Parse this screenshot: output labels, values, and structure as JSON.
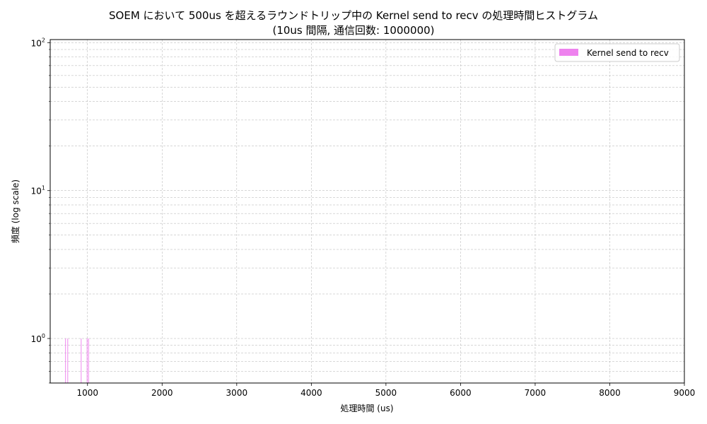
{
  "chart_data": {
    "type": "bar",
    "title": "SOEM において 500us を超えるラウンドトリップ中の Kernel send to recv の処理時間ヒストグラム",
    "subtitle": "(10us 間隔, 通信回数: 1000000)",
    "xlabel": "処理時間 (us)",
    "ylabel": "頻度 (log scale)",
    "xlim": [
      500,
      9000
    ],
    "ylim": [
      0.5,
      105
    ],
    "y_scale": "log",
    "grid": true,
    "legend_position": "top-right",
    "x_ticks": [
      "1000",
      "2000",
      "3000",
      "4000",
      "5000",
      "6000",
      "7000",
      "8000",
      "9000"
    ],
    "y_ticks": [
      {
        "value": 1,
        "label": "10",
        "exp": "0"
      },
      {
        "value": 10,
        "label": "10",
        "exp": "1"
      },
      {
        "value": 100,
        "label": "10",
        "exp": "2"
      }
    ],
    "series": [
      {
        "name": "Kernel send to recv",
        "color": "#ee82ee",
        "bin_width": 10,
        "bins": [
          {
            "x": 700,
            "value": 1
          },
          {
            "x": 730,
            "value": 1
          },
          {
            "x": 910,
            "value": 1
          },
          {
            "x": 990,
            "value": 1
          },
          {
            "x": 1010,
            "value": 1
          }
        ]
      }
    ]
  }
}
